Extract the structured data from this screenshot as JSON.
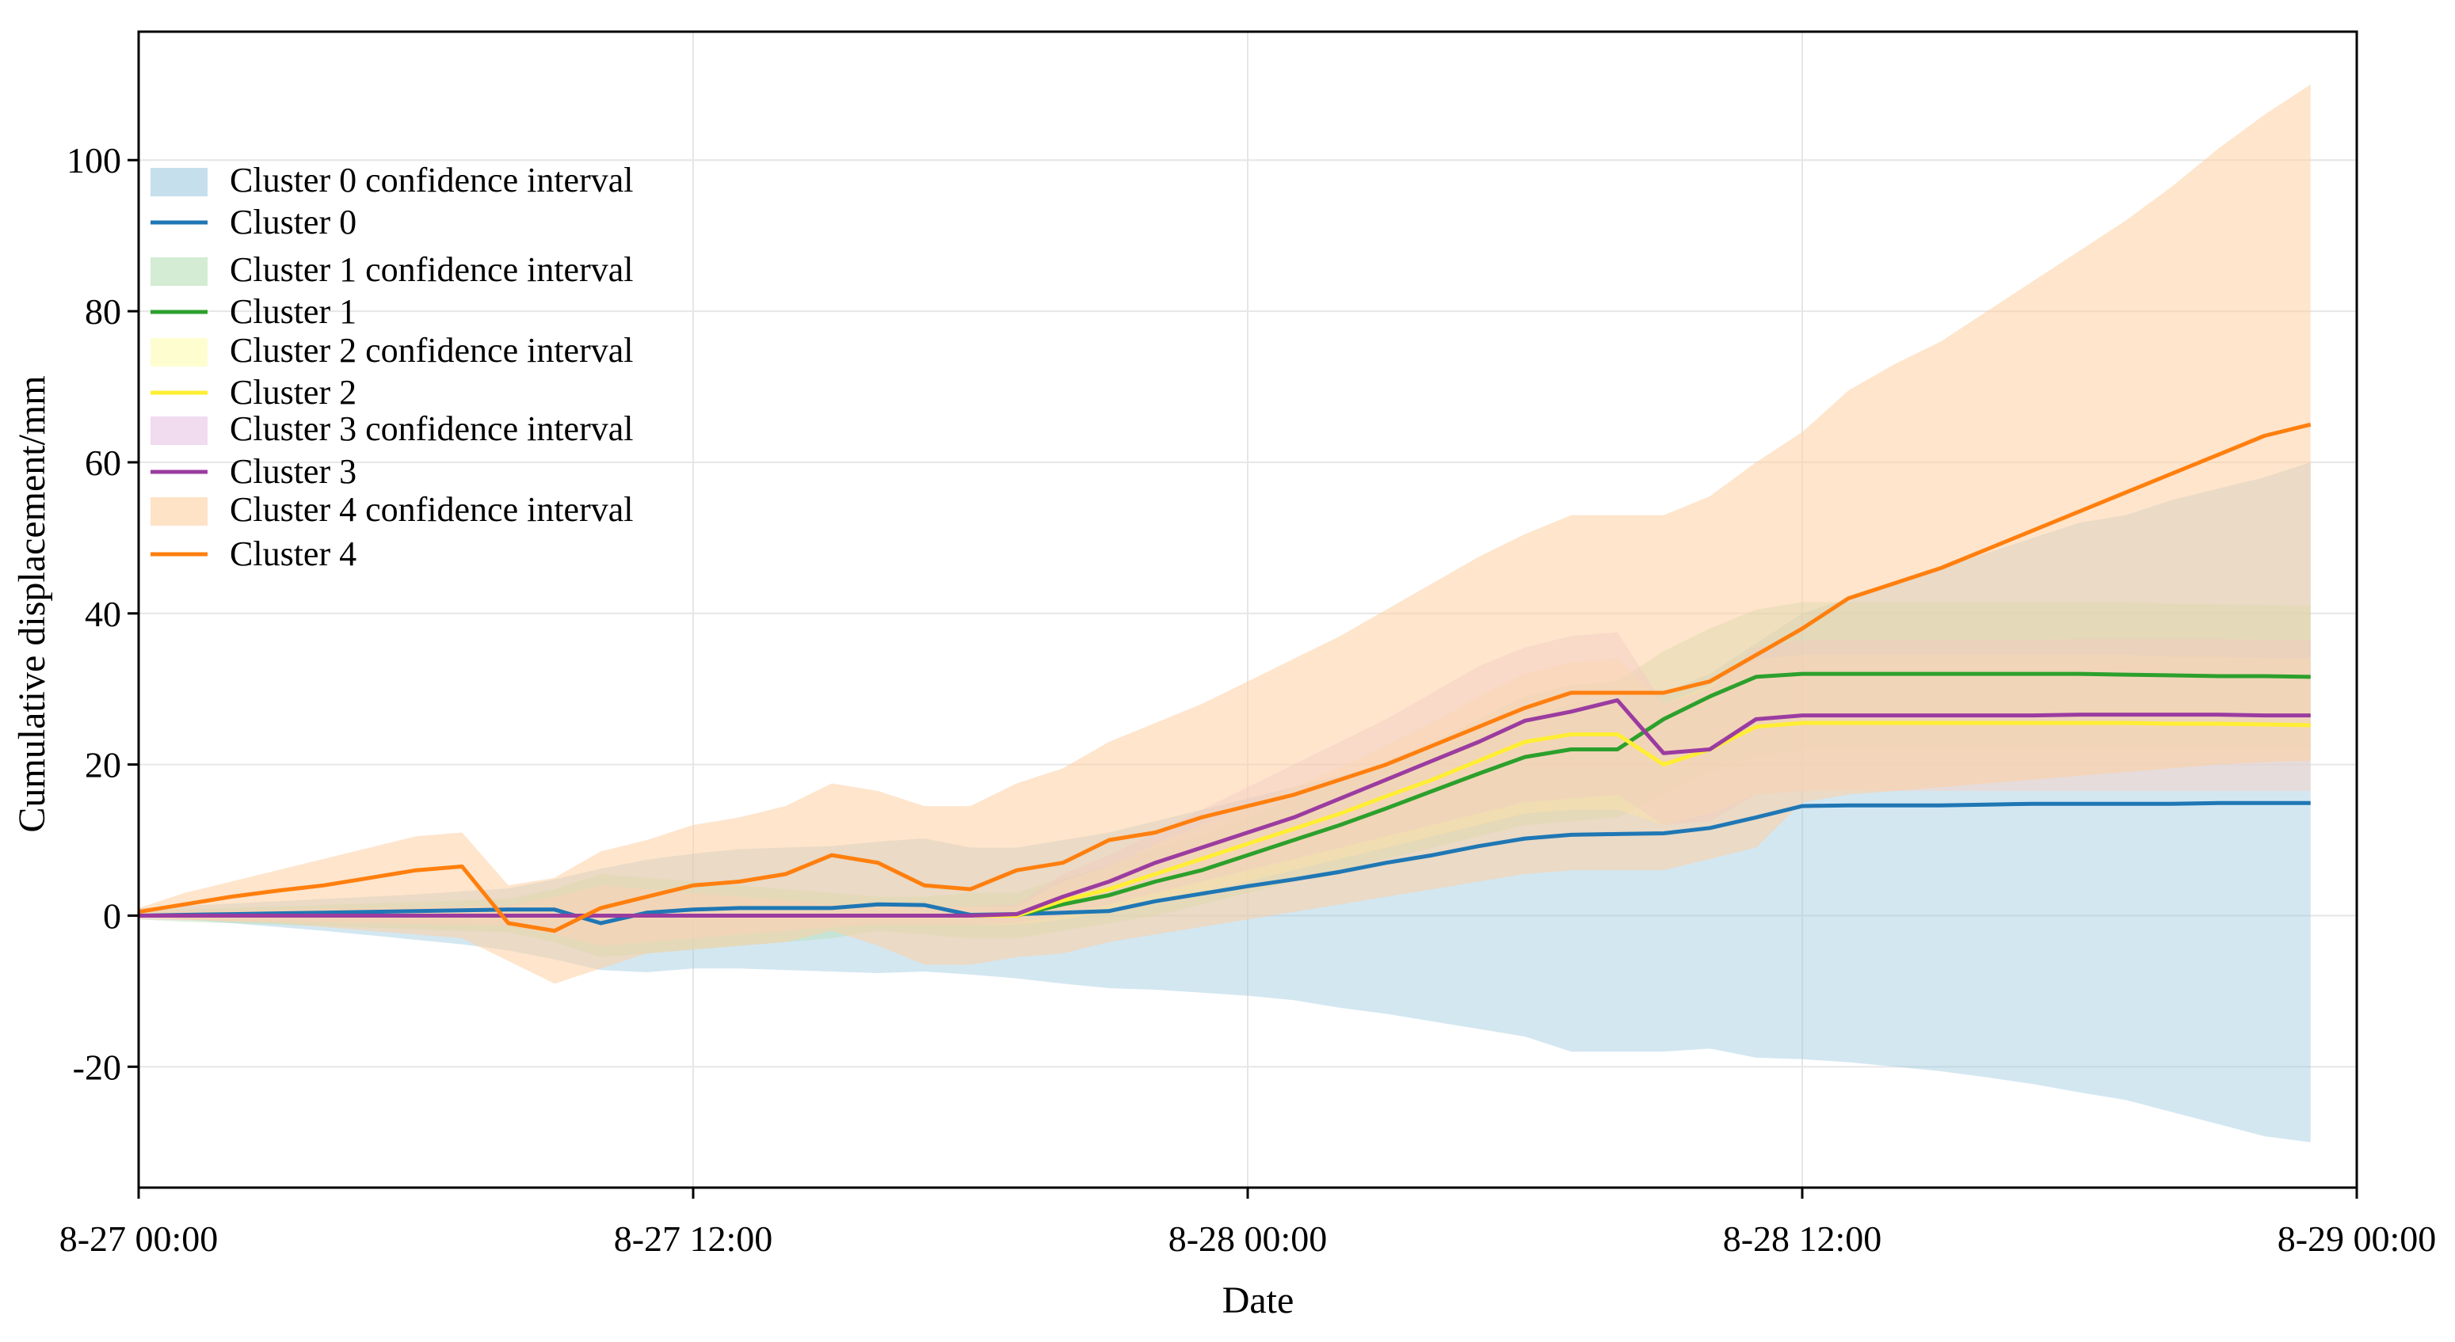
{
  "chart_data": {
    "type": "line",
    "title": "",
    "xlabel": "Date",
    "ylabel": "Cumulative displacement/mm",
    "x_unit": "hours since 8-27 00:00",
    "xlim": [
      0,
      48
    ],
    "ylim": [
      -36,
      117
    ],
    "grid": true,
    "legend_position": "top-left",
    "x_ticks": [
      {
        "value": 0,
        "label": "8-27 00:00"
      },
      {
        "value": 12,
        "label": "8-27 12:00"
      },
      {
        "value": 24,
        "label": "8-28 00:00"
      },
      {
        "value": 36,
        "label": "8-28 12:00"
      },
      {
        "value": 48,
        "label": "8-29 00:00"
      }
    ],
    "y_ticks": [
      {
        "value": 100,
        "label": "100"
      },
      {
        "value": 80,
        "label": "80"
      },
      {
        "value": 60,
        "label": "60"
      },
      {
        "value": 40,
        "label": "40"
      },
      {
        "value": 20,
        "label": "20"
      },
      {
        "value": 0,
        "label": "0"
      },
      {
        "value": -20,
        "label": "-20"
      }
    ],
    "x": [
      0,
      1,
      2,
      3,
      4,
      5,
      6,
      7,
      8,
      9,
      10,
      11,
      12,
      13,
      14,
      15,
      16,
      17,
      18,
      19,
      20,
      21,
      22,
      23,
      24,
      25,
      26,
      27,
      28,
      29,
      30,
      31,
      32,
      33,
      34,
      35,
      36,
      37,
      38,
      39,
      40,
      41,
      42,
      43,
      44,
      45,
      46,
      47
    ],
    "series": [
      {
        "name": "Cluster 0",
        "ci_label": "Cluster 0 confidence interval",
        "color": "#1f77b4",
        "fill": "#9ecae1",
        "values": [
          0,
          0.1,
          0.2,
          0.3,
          0.4,
          0.5,
          0.6,
          0.7,
          0.8,
          0.8,
          -1.0,
          0.4,
          0.8,
          1.0,
          1.0,
          1.0,
          1.5,
          1.4,
          0.1,
          0.2,
          0.4,
          0.6,
          1.9,
          2.9,
          3.9,
          4.8,
          5.8,
          7.0,
          8.0,
          9.2,
          10.2,
          10.7,
          10.8,
          10.9,
          11.6,
          13.0,
          14.5,
          14.6,
          14.6,
          14.6,
          14.7,
          14.8,
          14.8,
          14.8,
          14.8,
          14.9,
          14.9,
          14.9
        ],
        "lower": [
          0,
          -0.5,
          -1.0,
          -1.5,
          -2.0,
          -2.6,
          -3.2,
          -3.8,
          -4.6,
          -5.8,
          -7.2,
          -7.5,
          -7.0,
          -7.0,
          -7.2,
          -7.4,
          -7.6,
          -7.4,
          -7.8,
          -8.3,
          -9.0,
          -9.6,
          -9.8,
          -10.2,
          -10.6,
          -11.2,
          -12.2,
          -13.0,
          -14.0,
          -15.0,
          -16.0,
          -18.0,
          -18.0,
          -18.0,
          -17.6,
          -18.8,
          -19.0,
          -19.4,
          -20.0,
          -20.6,
          -21.4,
          -22.3,
          -23.4,
          -24.4,
          -26.0,
          -27.6,
          -29.2,
          -30.0
        ],
        "upper": [
          1.0,
          1.3,
          1.6,
          1.9,
          2.2,
          2.5,
          2.8,
          3.2,
          3.6,
          4.8,
          6.2,
          7.4,
          8.2,
          8.8,
          9.0,
          9.2,
          9.8,
          10.2,
          9.0,
          9.0,
          10.0,
          11.0,
          12.5,
          14.0,
          15.5,
          17.0,
          18.5,
          20.0,
          22.0,
          24.0,
          26.0,
          28.0,
          29.0,
          29.5,
          32.0,
          36.0,
          40.0,
          42.0,
          44.0,
          46.0,
          48.0,
          50.0,
          52.0,
          53.0,
          55.0,
          56.5,
          58.0,
          60.0
        ]
      },
      {
        "name": "Cluster 1",
        "ci_label": "Cluster 1 confidence interval",
        "color": "#2ca02c",
        "fill": "#b5dfb5",
        "values": [
          0,
          0,
          0,
          0,
          0,
          0,
          0,
          0,
          0,
          0,
          0,
          0,
          0,
          0,
          0,
          0,
          0,
          0,
          0,
          0,
          1.5,
          2.7,
          4.5,
          6.0,
          8.0,
          10.0,
          12.0,
          14.2,
          16.5,
          18.8,
          21.0,
          22.0,
          22.0,
          26.0,
          29.0,
          31.6,
          32.0,
          32.0,
          32.0,
          32.0,
          32.0,
          32.0,
          32.0,
          31.9,
          31.8,
          31.7,
          31.7,
          31.6
        ],
        "lower": [
          -0.5,
          -0.8,
          -1.0,
          -1.2,
          -1.4,
          -1.6,
          -1.8,
          -2.0,
          -2.2,
          -3.5,
          -5.5,
          -5.0,
          -4.5,
          -4.0,
          -3.5,
          -3.0,
          -2.0,
          -2.5,
          -3.0,
          -3.0,
          -2.0,
          -1.0,
          0.0,
          1.5,
          3.0,
          4.5,
          6.0,
          7.5,
          9.0,
          10.5,
          12.0,
          12.5,
          13.0,
          16.0,
          19.0,
          21.0,
          22.0,
          22.0,
          22.0,
          22.0,
          22.0,
          22.0,
          22.0,
          22.0,
          22.0,
          22.0,
          22.0,
          22.0
        ],
        "upper": [
          0.5,
          0.8,
          1.0,
          1.2,
          1.4,
          1.6,
          1.8,
          2.0,
          2.2,
          3.5,
          5.5,
          5.0,
          4.5,
          4.0,
          3.5,
          3.0,
          2.5,
          2.5,
          3.0,
          3.0,
          5.0,
          6.5,
          9.0,
          10.5,
          13.0,
          15.5,
          18.0,
          20.5,
          23.0,
          26.0,
          29.0,
          30.5,
          31.0,
          35.0,
          38.0,
          40.5,
          41.5,
          41.5,
          41.5,
          41.5,
          41.5,
          41.5,
          41.5,
          41.5,
          41.3,
          41.2,
          41.1,
          41.0
        ]
      },
      {
        "name": "Cluster 2",
        "ci_label": "Cluster 2 confidence interval",
        "color": "#ffee33",
        "fill": "#fdfbb0",
        "values": [
          0,
          0,
          0,
          0,
          0,
          0,
          0,
          0,
          0,
          0,
          0,
          0,
          0,
          0,
          0,
          0,
          0,
          0,
          0,
          0,
          2.0,
          3.5,
          5.5,
          7.5,
          9.5,
          11.5,
          13.5,
          15.8,
          18.0,
          20.5,
          23.0,
          24.0,
          24.0,
          20.0,
          22.0,
          25.0,
          25.5,
          25.5,
          25.5,
          25.5,
          25.5,
          25.5,
          25.5,
          25.5,
          25.4,
          25.4,
          25.3,
          25.2
        ],
        "lower": [
          -0.5,
          -0.6,
          -0.7,
          -0.8,
          -0.9,
          -1.0,
          -1.1,
          -1.2,
          -1.3,
          -2.5,
          -4.0,
          -3.5,
          -3.0,
          -2.5,
          -2.0,
          -1.5,
          -1.2,
          -1.2,
          -1.2,
          -1.2,
          -0.5,
          0.5,
          1.5,
          3.0,
          4.5,
          6.0,
          7.5,
          9.0,
          10.5,
          12.0,
          13.5,
          14.0,
          14.0,
          12.0,
          13.5,
          16.0,
          16.5,
          16.5,
          16.5,
          16.5,
          16.5,
          16.5,
          16.5,
          16.5,
          16.5,
          16.5,
          16.5,
          16.5
        ],
        "upper": [
          0.5,
          0.6,
          0.7,
          0.8,
          0.9,
          1.0,
          1.1,
          1.2,
          1.3,
          2.5,
          4.0,
          3.5,
          3.0,
          2.5,
          2.0,
          1.5,
          1.2,
          1.2,
          1.2,
          1.2,
          4.5,
          6.5,
          9.5,
          12.0,
          14.5,
          17.0,
          19.5,
          22.5,
          25.5,
          29.0,
          32.0,
          33.5,
          34.0,
          28.0,
          30.5,
          34.0,
          34.5,
          34.5,
          34.5,
          34.5,
          34.5,
          34.5,
          34.5,
          34.5,
          34.3,
          34.3,
          34.1,
          34.0
        ]
      },
      {
        "name": "Cluster 3",
        "ci_label": "Cluster 3 confidence interval",
        "color": "#9b3ca0",
        "fill": "#e7c3e4",
        "values": [
          0,
          0,
          0,
          0,
          0,
          0,
          0,
          0,
          0,
          0,
          0,
          0,
          0,
          0,
          0,
          0,
          0,
          0,
          0,
          0.2,
          2.5,
          4.5,
          7.0,
          9.0,
          11.0,
          13.0,
          15.5,
          18.0,
          20.5,
          23.0,
          25.8,
          27.0,
          28.5,
          21.5,
          22.0,
          26.0,
          26.5,
          26.5,
          26.5,
          26.5,
          26.5,
          26.5,
          26.6,
          26.6,
          26.6,
          26.6,
          26.5,
          26.5
        ],
        "lower": [
          -0.5,
          -0.6,
          -0.7,
          -0.8,
          -0.9,
          -1.0,
          -1.1,
          -1.2,
          -1.3,
          -2.5,
          -4.0,
          -3.5,
          -3.0,
          -2.5,
          -2.0,
          -1.5,
          -1.2,
          -1.2,
          -1.2,
          -1.0,
          0.0,
          1.5,
          3.0,
          4.5,
          6.0,
          7.5,
          9.0,
          10.5,
          12.0,
          13.5,
          15.0,
          15.5,
          16.0,
          12.0,
          12.5,
          16.0,
          16.5,
          16.5,
          16.5,
          16.5,
          16.5,
          16.5,
          16.5,
          16.5,
          16.5,
          16.5,
          16.5,
          16.5
        ],
        "upper": [
          0.5,
          0.6,
          0.7,
          0.8,
          0.9,
          1.0,
          1.1,
          1.2,
          1.3,
          2.5,
          4.0,
          3.5,
          3.0,
          2.5,
          2.0,
          1.5,
          1.2,
          1.2,
          1.2,
          1.5,
          5.5,
          8.0,
          11.0,
          14.0,
          17.0,
          20.0,
          23.0,
          26.0,
          29.5,
          33.0,
          35.5,
          37.0,
          37.5,
          28.0,
          30.0,
          35.5,
          36.5,
          36.5,
          36.5,
          36.5,
          36.5,
          36.5,
          36.6,
          36.6,
          36.6,
          36.6,
          36.5,
          36.5
        ]
      },
      {
        "name": "Cluster 4",
        "ci_label": "Cluster 4 confidence interval",
        "color": "#ff7f0e",
        "fill": "#fdd0a2",
        "values": [
          0.5,
          1.5,
          2.5,
          3.3,
          4.0,
          5.0,
          6.0,
          6.5,
          -1.0,
          -2.0,
          1.0,
          2.5,
          4.0,
          4.5,
          5.5,
          8.0,
          7.0,
          4.0,
          3.5,
          6.0,
          7.0,
          10.0,
          11.0,
          13.0,
          14.5,
          16.0,
          18.0,
          20.0,
          22.5,
          25.0,
          27.5,
          29.5,
          29.5,
          29.5,
          31.0,
          34.5,
          38.0,
          42.0,
          44.0,
          46.0,
          48.5,
          51.0,
          53.5,
          56.0,
          58.5,
          61.0,
          63.5,
          65.0
        ],
        "lower": [
          -0.2,
          -0.5,
          -0.8,
          -1.0,
          -1.5,
          -2.0,
          -2.5,
          -3.0,
          -6.0,
          -9.0,
          -7.0,
          -5.0,
          -4.5,
          -4.0,
          -3.5,
          -2.0,
          -4.0,
          -6.5,
          -6.5,
          -5.5,
          -5.0,
          -3.5,
          -2.5,
          -1.5,
          -0.5,
          0.5,
          1.5,
          2.5,
          3.5,
          4.5,
          5.5,
          6.0,
          6.0,
          6.0,
          7.5,
          9.0,
          15.0,
          16.0,
          16.5,
          17.0,
          17.5,
          18.0,
          18.5,
          19.0,
          19.5,
          20.0,
          20.3,
          20.5
        ],
        "upper": [
          1.0,
          3.0,
          4.5,
          6.0,
          7.5,
          9.0,
          10.5,
          11.0,
          4.0,
          5.0,
          8.5,
          10.0,
          12.0,
          13.0,
          14.5,
          17.5,
          16.5,
          14.5,
          14.5,
          17.5,
          19.5,
          23.0,
          25.5,
          28.0,
          31.0,
          34.0,
          37.0,
          40.5,
          44.0,
          47.5,
          50.5,
          53.0,
          53.0,
          53.0,
          55.5,
          60.0,
          64.0,
          69.5,
          73.0,
          76.0,
          80.0,
          84.0,
          88.0,
          92.0,
          96.5,
          101.5,
          106.0,
          110.0
        ]
      }
    ]
  }
}
